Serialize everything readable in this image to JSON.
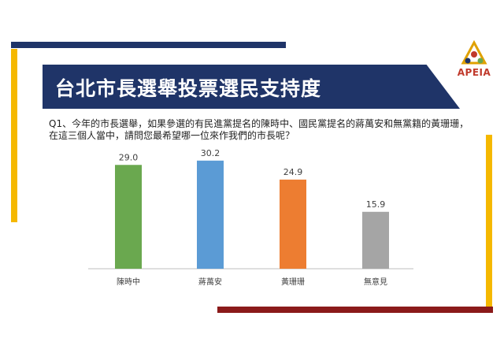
{
  "title": "台北市長選舉投票選民支持度",
  "logo": {
    "text": "APEIA"
  },
  "question": "Q1、今年的市長選舉，如果參選的有民進黨提名的陳時中、國民黨提名的蔣萬安和無黨籍的黃珊珊，在這三個人當中，請問您最希望哪一位來作我們的市長呢？",
  "colors": {
    "navy": "#1f3468",
    "yellow": "#f5b800",
    "dark_red": "#8b1a1a",
    "bar_green": "#6aa84f",
    "bar_blue": "#5b9bd5",
    "bar_orange": "#ed7d31",
    "bar_gray": "#a5a5a5"
  },
  "chart_data": {
    "type": "bar",
    "categories": [
      "陳時中",
      "蔣萬安",
      "黃珊珊",
      "無意見"
    ],
    "values": [
      29.0,
      30.2,
      24.9,
      15.9
    ],
    "value_labels": [
      "29.0",
      "30.2",
      "24.9",
      "15.9"
    ],
    "bar_colors": [
      "#6aa84f",
      "#5b9bd5",
      "#ed7d31",
      "#a5a5a5"
    ],
    "ylim": [
      0,
      35
    ],
    "grid": false,
    "legend": "none"
  }
}
